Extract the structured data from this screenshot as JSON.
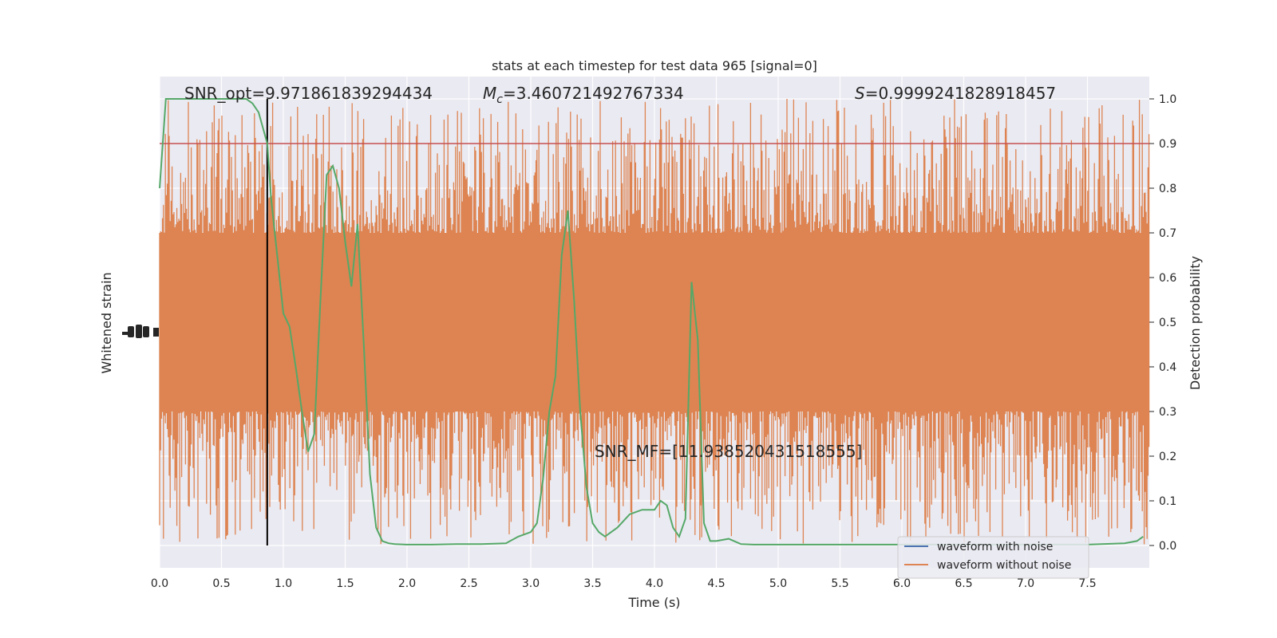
{
  "chart_data": {
    "type": "line",
    "title": "stats at each timestep for test data 965 [signal=0]",
    "xlabel": "Time (s)",
    "ylabel_left": "Whitened strain",
    "ylabel_right": "Detection probability",
    "xlim": [
      0.0,
      8.0
    ],
    "ylim_right": [
      -0.05,
      1.05
    ],
    "grid": true,
    "x_ticks": [
      "0.0",
      "0.5",
      "1.0",
      "1.5",
      "2.0",
      "2.5",
      "3.0",
      "3.5",
      "4.0",
      "4.5",
      "5.0",
      "5.5",
      "6.0",
      "6.5",
      "7.0",
      "7.5"
    ],
    "y_right_ticks": [
      "0.0",
      "0.1",
      "0.2",
      "0.3",
      "0.4",
      "0.5",
      "0.6",
      "0.7",
      "0.8",
      "0.9",
      "1.0"
    ],
    "annotations": {
      "snr_opt": "SNR_opt=9.971861839294434",
      "mc_symbol": "M",
      "mc_sub": "c",
      "mc_value": "=3.460721492767334",
      "s_symbol": "S",
      "s_value": "=0.9999241828918457",
      "snr_mf": "SNR_MF=[11.938520431518555]"
    },
    "threshold": 0.9,
    "vline_x": 0.87,
    "legend": {
      "position": "lower-right",
      "entries": [
        "waveform with noise",
        "waveform without noise"
      ]
    },
    "colors": {
      "noise_series": "#4c72b0",
      "clean_series": "#dd8452",
      "probability": "#55a868",
      "threshold": "#c44e52",
      "vline": "#000000",
      "plot_bg": "#eaeaf2",
      "grid": "#ffffff"
    },
    "series": [
      {
        "name": "waveform with noise",
        "values": []
      },
      {
        "name": "waveform without noise",
        "band_core": [
          0.3,
          0.7
        ],
        "band_envelope": [
          0.0,
          1.0
        ]
      },
      {
        "axis": "right",
        "x": [
          0.0,
          0.05,
          0.1,
          0.15,
          0.2,
          0.3,
          0.4,
          0.5,
          0.6,
          0.7,
          0.75,
          0.8,
          0.87,
          0.9,
          0.95,
          1.0,
          1.05,
          1.1,
          1.15,
          1.2,
          1.25,
          1.3,
          1.35,
          1.4,
          1.45,
          1.5,
          1.55,
          1.6,
          1.65,
          1.7,
          1.75,
          1.8,
          1.85,
          1.9,
          2.0,
          2.2,
          2.4,
          2.6,
          2.8,
          2.9,
          3.0,
          3.05,
          3.1,
          3.15,
          3.2,
          3.25,
          3.3,
          3.35,
          3.4,
          3.45,
          3.5,
          3.55,
          3.6,
          3.7,
          3.8,
          3.9,
          4.0,
          4.05,
          4.1,
          4.15,
          4.2,
          4.25,
          4.3,
          4.35,
          4.4,
          4.45,
          4.5,
          4.6,
          4.7,
          4.8,
          5.0,
          5.5,
          6.0,
          6.5,
          7.0,
          7.5,
          7.8,
          7.9,
          7.95
        ],
        "y": [
          0.8,
          1.0,
          1.0,
          1.0,
          1.0,
          1.0,
          1.0,
          1.0,
          1.0,
          1.0,
          0.99,
          0.97,
          0.9,
          0.78,
          0.65,
          0.52,
          0.49,
          0.4,
          0.3,
          0.21,
          0.25,
          0.55,
          0.83,
          0.85,
          0.8,
          0.68,
          0.58,
          0.72,
          0.45,
          0.16,
          0.04,
          0.01,
          0.005,
          0.003,
          0.002,
          0.002,
          0.003,
          0.003,
          0.005,
          0.02,
          0.03,
          0.05,
          0.15,
          0.3,
          0.38,
          0.65,
          0.75,
          0.55,
          0.3,
          0.13,
          0.05,
          0.03,
          0.02,
          0.04,
          0.07,
          0.08,
          0.08,
          0.1,
          0.09,
          0.04,
          0.02,
          0.06,
          0.59,
          0.46,
          0.05,
          0.01,
          0.01,
          0.015,
          0.003,
          0.002,
          0.002,
          0.002,
          0.002,
          0.002,
          0.002,
          0.002,
          0.005,
          0.01,
          0.02
        ]
      }
    ]
  }
}
